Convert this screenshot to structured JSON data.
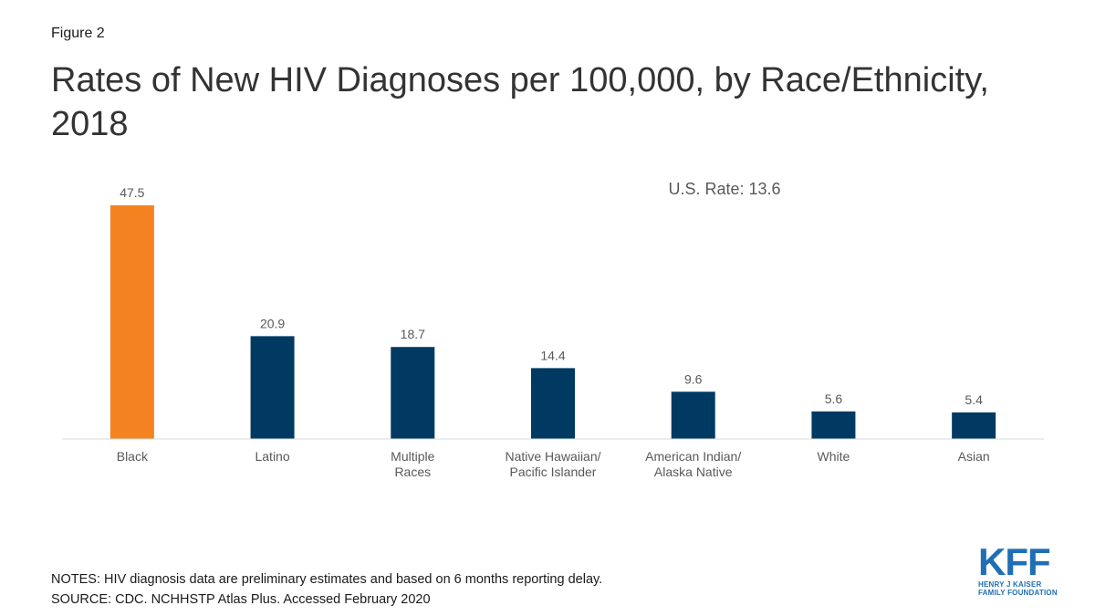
{
  "figure_label": "Figure 2",
  "title": "Rates of New HIV Diagnoses per 100,000, by Race/Ethnicity, 2018",
  "annotation": "U.S. Rate: 13.6",
  "notes": "NOTES: HIV diagnosis data are preliminary estimates and based on 6 months reporting delay.",
  "source": "SOURCE: CDC. NCHHSTP Atlas Plus. Accessed February 2020",
  "logo": {
    "mark": "KFF",
    "line1": "HENRY J KAISER",
    "line2": "FAMILY FOUNDATION"
  },
  "colors": {
    "highlight": "#f58220",
    "bar": "#003a63",
    "axis": "#d9d9d9",
    "label": "#595959"
  },
  "chart_data": {
    "type": "bar",
    "categories": [
      [
        "Black"
      ],
      [
        "Latino"
      ],
      [
        "Multiple",
        "Races"
      ],
      [
        "Native Hawaiian/",
        "Pacific Islander"
      ],
      [
        "American Indian/",
        "Alaska Native"
      ],
      [
        "White"
      ],
      [
        "Asian"
      ]
    ],
    "values": [
      47.5,
      20.9,
      18.7,
      14.4,
      9.6,
      5.6,
      5.4
    ],
    "value_labels": [
      "47.5",
      "20.9",
      "18.7",
      "14.4",
      "9.6",
      "5.6",
      "5.4"
    ],
    "highlight_index": 0,
    "ylim": [
      0,
      47.5
    ],
    "grid": false,
    "legend": "none"
  }
}
